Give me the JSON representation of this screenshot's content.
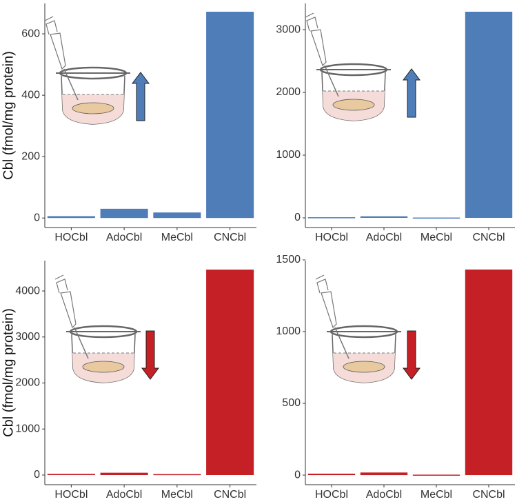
{
  "chart_data": [
    {
      "type": "bar",
      "y_label": "Cbl (fmol/mg protein)",
      "categories": [
        "HOCbl",
        "AdoCbl",
        "MeCbl",
        "CNCbl"
      ],
      "values": [
        6,
        30,
        18,
        672
      ],
      "color": "#4f7db8",
      "ylim": [
        -31,
        699
      ],
      "yticks": [
        0,
        200,
        400,
        600
      ]
    },
    {
      "type": "bar",
      "categories": [
        "HOCbl",
        "AdoCbl",
        "MeCbl",
        "CNCbl"
      ],
      "values": [
        10,
        25,
        5,
        3286
      ],
      "color": "#4f7db8",
      "ylim": [
        -154,
        3418
      ],
      "yticks": [
        0,
        1000,
        2000,
        3000
      ]
    },
    {
      "type": "bar",
      "y_label": "Cbl (fmol/mg protein)",
      "categories": [
        "HOCbl",
        "AdoCbl",
        "MeCbl",
        "CNCbl"
      ],
      "values": [
        25,
        50,
        20,
        4465
      ],
      "color": "#c42026",
      "ylim": [
        -210,
        4660
      ],
      "yticks": [
        0,
        1000,
        2000,
        3000,
        4000
      ]
    },
    {
      "type": "bar",
      "categories": [
        "HOCbl",
        "AdoCbl",
        "MeCbl",
        "CNCbl"
      ],
      "values": [
        10,
        18,
        3,
        1433
      ],
      "color": "#c42026",
      "ylim": [
        -67,
        1495
      ],
      "yticks": [
        0,
        500,
        1000,
        1500
      ]
    }
  ]
}
